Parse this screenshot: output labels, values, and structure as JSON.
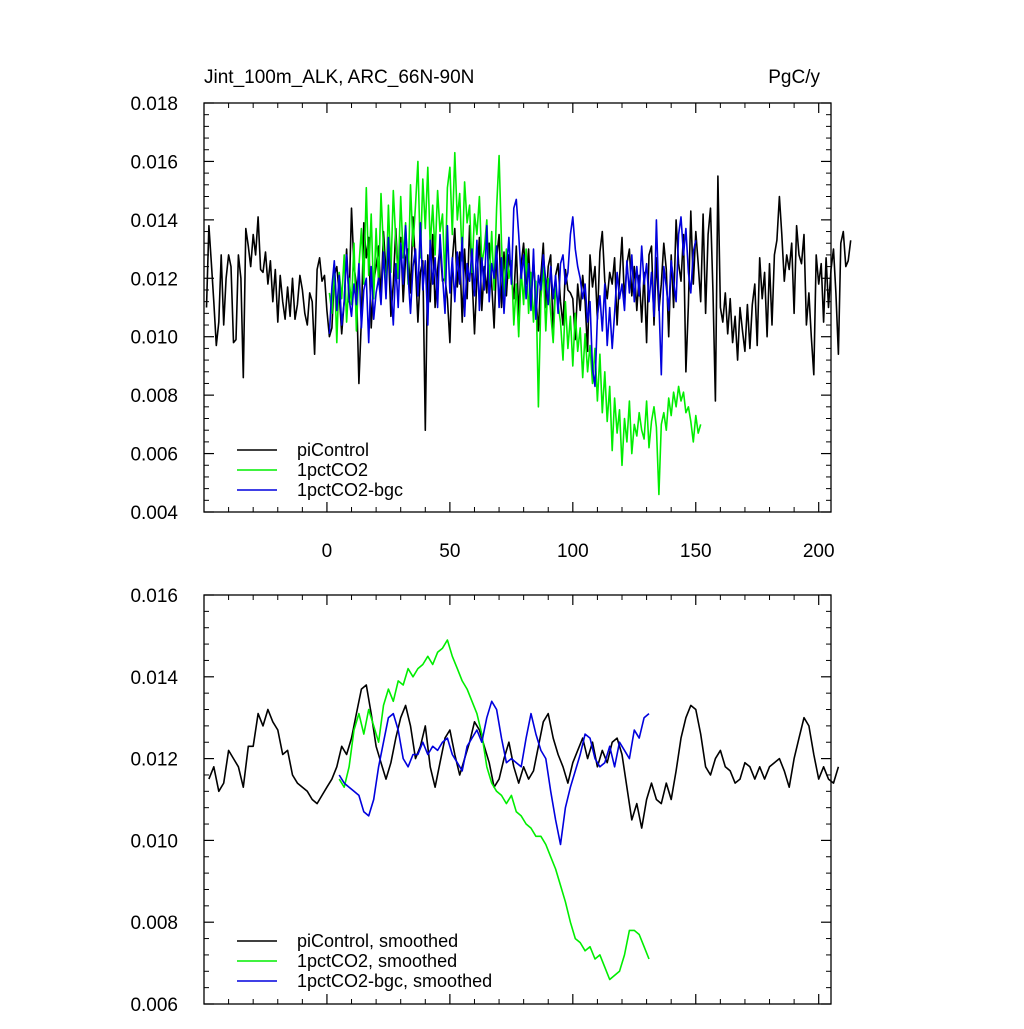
{
  "title_left": "Jint_100m_ALK, ARC_66N-90N",
  "title_right": "PgC/y",
  "colors": {
    "piControl": "#000000",
    "1pctCO2": "#00ee00",
    "1pctCO2-bgc": "#0000dd"
  },
  "chart_data": [
    {
      "type": "line",
      "panel": "top",
      "xlim": [
        -50,
        205
      ],
      "ylim": [
        0.004,
        0.018
      ],
      "xticks": [
        0,
        50,
        100,
        150,
        200
      ],
      "xtick_labels": [
        "0",
        "50",
        "100",
        "150",
        "200"
      ],
      "yticks": [
        0.004,
        0.006,
        0.008,
        0.01,
        0.012,
        0.014,
        0.016,
        0.018
      ],
      "ytick_labels": [
        "0.004",
        "0.006",
        "0.008",
        "0.010",
        "0.012",
        "0.014",
        "0.016",
        "0.018"
      ],
      "legend_position": "bottom-left",
      "series": [
        {
          "name": "piControl",
          "key": "piControl",
          "x_start": -49,
          "x_step": 1,
          "values": [
            0.011,
            0.0138,
            0.0125,
            0.0112,
            0.0097,
            0.0105,
            0.0128,
            0.0104,
            0.012,
            0.0128,
            0.0124,
            0.0098,
            0.0099,
            0.0128,
            0.012,
            0.0086,
            0.0137,
            0.0131,
            0.0124,
            0.0135,
            0.0128,
            0.0141,
            0.0123,
            0.0122,
            0.0129,
            0.0118,
            0.0126,
            0.0112,
            0.0123,
            0.0105,
            0.0121,
            0.0112,
            0.0106,
            0.0117,
            0.0107,
            0.012,
            0.0106,
            0.0111,
            0.0121,
            0.0116,
            0.0108,
            0.0104,
            0.0115,
            0.0112,
            0.0094,
            0.0123,
            0.0127,
            0.0119,
            0.0121,
            0.0109,
            0.01,
            0.0103,
            0.0121,
            0.0124,
            0.0115,
            0.0101,
            0.0112,
            0.013,
            0.0112,
            0.0144,
            0.0124,
            0.0118,
            0.0084,
            0.0106,
            0.0139,
            0.0127,
            0.0134,
            0.0103,
            0.0119,
            0.0124,
            0.0131,
            0.0113,
            0.0136,
            0.0122,
            0.013,
            0.0107,
            0.0118,
            0.0137,
            0.012,
            0.0134,
            0.0112,
            0.0127,
            0.013,
            0.0115,
            0.0141,
            0.0124,
            0.0105,
            0.0122,
            0.0126,
            0.0068,
            0.0128,
            0.0112,
            0.0135,
            0.011,
            0.0123,
            0.0131,
            0.0119,
            0.012,
            0.0113,
            0.0098,
            0.0126,
            0.0137,
            0.0117,
            0.0129,
            0.0105,
            0.013,
            0.0113,
            0.0138,
            0.0121,
            0.0101,
            0.012,
            0.0134,
            0.0109,
            0.0124,
            0.0115,
            0.0132,
            0.0118,
            0.0103,
            0.0127,
            0.0135,
            0.011,
            0.0129,
            0.0114,
            0.0128,
            0.012,
            0.0113,
            0.0131,
            0.0107,
            0.0125,
            0.0132,
            0.0118,
            0.013,
            0.0112,
            0.0126,
            0.0114,
            0.0102,
            0.0121,
            0.0132,
            0.011,
            0.0124,
            0.0128,
            0.01,
            0.0121,
            0.0125,
            0.0112,
            0.0104,
            0.0123,
            0.0116,
            0.0115,
            0.0113,
            0.0099,
            0.0118,
            0.0109,
            0.0121,
            0.0112,
            0.0095,
            0.0128,
            0.0117,
            0.0124,
            0.0106,
            0.0129,
            0.0136,
            0.0119,
            0.0113,
            0.0122,
            0.0118,
            0.0127,
            0.0104,
            0.012,
            0.0134,
            0.0112,
            0.0125,
            0.013,
            0.0114,
            0.0124,
            0.0109,
            0.0121,
            0.0105,
            0.0122,
            0.0098,
            0.0128,
            0.0131,
            0.0104,
            0.0127,
            0.0109,
            0.0118,
            0.0132,
            0.0123,
            0.01,
            0.0128,
            0.011,
            0.014,
            0.0125,
            0.0119,
            0.0135,
            0.0088,
            0.0111,
            0.0143,
            0.0118,
            0.0136,
            0.0125,
            0.0112,
            0.0142,
            0.0108,
            0.0135,
            0.0144,
            0.0115,
            0.0078,
            0.0155,
            0.011,
            0.0105,
            0.0115,
            0.0101,
            0.0113,
            0.0098,
            0.0107,
            0.0092,
            0.011,
            0.0102,
            0.0095,
            0.0111,
            0.0096,
            0.0111,
            0.0118,
            0.0097,
            0.0127,
            0.0113,
            0.0122,
            0.01,
            0.0125,
            0.0104,
            0.0128,
            0.0133,
            0.0148,
            0.0135,
            0.0119,
            0.0128,
            0.0123,
            0.0132,
            0.0108,
            0.0138,
            0.0128,
            0.0125,
            0.0135,
            0.0104,
            0.0115,
            0.01,
            0.0087,
            0.0128,
            0.0118,
            0.0125,
            0.0105,
            0.0127,
            0.011,
            0.0123,
            0.013,
            0.0115,
            0.0094,
            0.0132,
            0.0136,
            0.0124,
            0.0126,
            0.0133
          ]
        },
        {
          "name": "1pctCO2",
          "key": "1pctCO2",
          "x_start": 1,
          "x_step": 1,
          "values": [
            0.0115,
            0.0108,
            0.0125,
            0.0098,
            0.0122,
            0.0113,
            0.0128,
            0.0105,
            0.012,
            0.0111,
            0.0132,
            0.0102,
            0.0124,
            0.0137,
            0.0118,
            0.0151,
            0.0121,
            0.0142,
            0.0113,
            0.0137,
            0.0118,
            0.0149,
            0.013,
            0.0115,
            0.0145,
            0.0122,
            0.015,
            0.0133,
            0.012,
            0.0148,
            0.0127,
            0.0139,
            0.0118,
            0.0152,
            0.0131,
            0.0145,
            0.016,
            0.0127,
            0.0154,
            0.0137,
            0.0158,
            0.0131,
            0.0145,
            0.0128,
            0.015,
            0.0136,
            0.0142,
            0.0119,
            0.0151,
            0.0158,
            0.0135,
            0.0163,
            0.014,
            0.0149,
            0.0126,
            0.0153,
            0.0139,
            0.0145,
            0.0122,
            0.0142,
            0.0135,
            0.0148,
            0.0125,
            0.013,
            0.014,
            0.0118,
            0.0136,
            0.0116,
            0.0144,
            0.0162,
            0.0132,
            0.0114,
            0.013,
            0.012,
            0.0126,
            0.0104,
            0.0118,
            0.01,
            0.0123,
            0.0111,
            0.013,
            0.0108,
            0.0122,
            0.0105,
            0.0119,
            0.0076,
            0.0113,
            0.0124,
            0.0102,
            0.012,
            0.0108,
            0.0098,
            0.0117,
            0.0111,
            0.0105,
            0.0092,
            0.0112,
            0.0096,
            0.0107,
            0.009,
            0.0108,
            0.0095,
            0.0103,
            0.0086,
            0.0101,
            0.0088,
            0.0097,
            0.0084,
            0.0096,
            0.0078,
            0.0094,
            0.0074,
            0.0088,
            0.0071,
            0.0083,
            0.0061,
            0.0079,
            0.0067,
            0.0075,
            0.0056,
            0.0072,
            0.0064,
            0.0078,
            0.006,
            0.007,
            0.0066,
            0.0074,
            0.0068,
            0.0065,
            0.0078,
            0.0062,
            0.0071,
            0.0076,
            0.0069,
            0.0046,
            0.007,
            0.0074,
            0.0068,
            0.0079,
            0.0073,
            0.0081,
            0.0076,
            0.0083,
            0.0078,
            0.0081,
            0.0074,
            0.0076,
            0.0071,
            0.0064,
            0.0073,
            0.0067,
            0.007
          ]
        },
        {
          "name": "1pctCO2-bgc",
          "key": "1pctCO2-bgc",
          "x_start": 1,
          "x_step": 1,
          "values": [
            0.0101,
            0.0117,
            0.0126,
            0.0109,
            0.0121,
            0.0104,
            0.0112,
            0.0128,
            0.0113,
            0.0107,
            0.0118,
            0.0111,
            0.0125,
            0.0103,
            0.0116,
            0.012,
            0.0098,
            0.0124,
            0.0106,
            0.0115,
            0.012,
            0.0111,
            0.0129,
            0.0113,
            0.0134,
            0.0117,
            0.0104,
            0.0125,
            0.011,
            0.0132,
            0.0118,
            0.0138,
            0.0121,
            0.0108,
            0.0124,
            0.013,
            0.0114,
            0.0139,
            0.0116,
            0.0126,
            0.0104,
            0.0133,
            0.0118,
            0.0127,
            0.011,
            0.0135,
            0.0121,
            0.0108,
            0.0138,
            0.0115,
            0.0127,
            0.0112,
            0.0129,
            0.0118,
            0.0134,
            0.0107,
            0.0125,
            0.0119,
            0.013,
            0.0114,
            0.0133,
            0.0109,
            0.0127,
            0.0116,
            0.0138,
            0.0112,
            0.0125,
            0.012,
            0.0131,
            0.011,
            0.0127,
            0.0108,
            0.0122,
            0.0134,
            0.0118,
            0.0144,
            0.0147,
            0.0135,
            0.012,
            0.0128,
            0.0113,
            0.0125,
            0.0109,
            0.013,
            0.0106,
            0.0121,
            0.0116,
            0.0128,
            0.0119,
            0.0111,
            0.0124,
            0.0113,
            0.0121,
            0.0108,
            0.0125,
            0.0128,
            0.0118,
            0.0122,
            0.0135,
            0.0141,
            0.013,
            0.0124,
            0.012,
            0.0113,
            0.0118,
            0.0105,
            0.0112,
            0.0089,
            0.0083,
            0.0107,
            0.0114,
            0.0102,
            0.0118,
            0.0097,
            0.011,
            0.0096,
            0.0108,
            0.0122,
            0.0113,
            0.0118,
            0.0109,
            0.0126,
            0.0115,
            0.0128,
            0.0112,
            0.0124,
            0.0114,
            0.0131,
            0.0118,
            0.0125,
            0.0112,
            0.0122,
            0.0107,
            0.014,
            0.0112,
            0.0087,
            0.0124,
            0.0117,
            0.0109,
            0.0126,
            0.0119,
            0.0112,
            0.0135,
            0.0141,
            0.0128,
            0.0137,
            0.0122,
            0.0115,
            0.0129,
            0.0133
          ]
        }
      ]
    },
    {
      "type": "line",
      "panel": "bottom",
      "xlim": [
        -50,
        205
      ],
      "ylim": [
        0.006,
        0.016
      ],
      "xticks": [
        0,
        50,
        100,
        150,
        200
      ],
      "yticks": [
        0.006,
        0.008,
        0.01,
        0.012,
        0.014,
        0.016
      ],
      "ytick_labels": [
        "0.006",
        "0.008",
        "0.010",
        "0.012",
        "0.014",
        "0.016"
      ],
      "legend_position": "bottom-left",
      "series": [
        {
          "name": "piControl, smoothed",
          "key": "piControl",
          "x_start": -48,
          "x_step": 2,
          "values": [
            0.0115,
            0.0118,
            0.0112,
            0.0114,
            0.0122,
            0.012,
            0.0118,
            0.0113,
            0.0123,
            0.0123,
            0.0131,
            0.0128,
            0.0132,
            0.0129,
            0.0127,
            0.0121,
            0.0122,
            0.0116,
            0.0114,
            0.0113,
            0.0112,
            0.011,
            0.0109,
            0.0111,
            0.0113,
            0.0115,
            0.0118,
            0.0123,
            0.0121,
            0.0125,
            0.0131,
            0.0137,
            0.0138,
            0.0131,
            0.0123,
            0.0119,
            0.0115,
            0.0119,
            0.0125,
            0.013,
            0.0133,
            0.0128,
            0.012,
            0.0123,
            0.0128,
            0.0118,
            0.0113,
            0.0119,
            0.0125,
            0.0127,
            0.0121,
            0.0116,
            0.012,
            0.0124,
            0.0129,
            0.0127,
            0.0123,
            0.0119,
            0.0113,
            0.0115,
            0.012,
            0.0124,
            0.0118,
            0.0114,
            0.0118,
            0.0115,
            0.0117,
            0.0123,
            0.0129,
            0.0131,
            0.0125,
            0.0121,
            0.0118,
            0.0114,
            0.0119,
            0.0122,
            0.0125,
            0.012,
            0.0124,
            0.0118,
            0.0122,
            0.0119,
            0.0124,
            0.0125,
            0.0121,
            0.0113,
            0.0105,
            0.0109,
            0.0103,
            0.011,
            0.0114,
            0.011,
            0.0109,
            0.0114,
            0.011,
            0.0117,
            0.0125,
            0.013,
            0.0133,
            0.0132,
            0.0126,
            0.0118,
            0.0116,
            0.012,
            0.0122,
            0.0118,
            0.0117,
            0.0114,
            0.0115,
            0.0119,
            0.0118,
            0.0115,
            0.0118,
            0.0115,
            0.0118,
            0.0119,
            0.012,
            0.0117,
            0.0113,
            0.012,
            0.0125,
            0.013,
            0.0128,
            0.0121,
            0.0115,
            0.0118,
            0.0115,
            0.0114,
            0.0118
          ]
        },
        {
          "name": "1pctCO2, smoothed",
          "key": "1pctCO2",
          "x_start": 5,
          "x_step": 2,
          "values": [
            0.0115,
            0.0113,
            0.0118,
            0.0127,
            0.0131,
            0.0126,
            0.0132,
            0.0128,
            0.0124,
            0.0133,
            0.0137,
            0.0134,
            0.0139,
            0.0138,
            0.0142,
            0.014,
            0.0142,
            0.0143,
            0.0145,
            0.0143,
            0.0146,
            0.0147,
            0.0149,
            0.0145,
            0.0142,
            0.0139,
            0.0137,
            0.0134,
            0.0131,
            0.0126,
            0.0118,
            0.0114,
            0.0112,
            0.0111,
            0.0109,
            0.0111,
            0.0107,
            0.0106,
            0.0104,
            0.0103,
            0.0101,
            0.0101,
            0.0099,
            0.0096,
            0.0093,
            0.0089,
            0.0085,
            0.008,
            0.0076,
            0.0075,
            0.0073,
            0.0074,
            0.0071,
            0.0072,
            0.0069,
            0.0066,
            0.0067,
            0.0068,
            0.0072,
            0.0078,
            0.0078,
            0.0077,
            0.0074,
            0.0071
          ]
        },
        {
          "name": "1pctCO2-bgc, smoothed",
          "key": "1pctCO2-bgc",
          "x_start": 5,
          "x_step": 2,
          "values": [
            0.0116,
            0.0114,
            0.0113,
            0.0112,
            0.0111,
            0.0107,
            0.0106,
            0.011,
            0.0118,
            0.0124,
            0.013,
            0.0131,
            0.0127,
            0.012,
            0.0118,
            0.0121,
            0.0121,
            0.0124,
            0.0121,
            0.0123,
            0.0122,
            0.0124,
            0.0125,
            0.0121,
            0.0119,
            0.0117,
            0.0123,
            0.0125,
            0.0127,
            0.0124,
            0.013,
            0.0134,
            0.0132,
            0.0125,
            0.0119,
            0.012,
            0.0119,
            0.0118,
            0.0125,
            0.0131,
            0.0126,
            0.0122,
            0.012,
            0.0112,
            0.0105,
            0.0099,
            0.0108,
            0.0113,
            0.0117,
            0.0121,
            0.0126,
            0.0125,
            0.012,
            0.0118,
            0.0119,
            0.0123,
            0.0118,
            0.0124,
            0.0122,
            0.012,
            0.0127,
            0.0125,
            0.013,
            0.0131
          ]
        }
      ]
    }
  ]
}
